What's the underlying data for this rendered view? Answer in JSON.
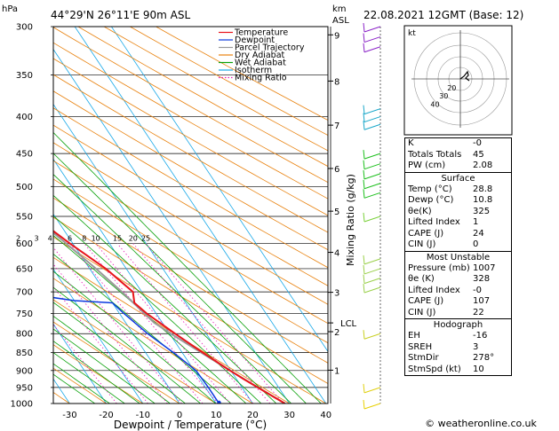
{
  "header": {
    "left_unit": "hPa",
    "location": "44°29'N  26°11'E  90m  ASL",
    "km_label": "km",
    "asl_label": "ASL",
    "datetime": "22.08.2021  12GMT  (Base: 12)"
  },
  "colors": {
    "temperature": "#e8141b",
    "dewpoint": "#0b3ae0",
    "parcel": "#999999",
    "dry_adiabat": "#e8820f",
    "wet_adiabat": "#0aa10a",
    "isotherm": "#18a8e8",
    "mixing_ratio": "#e819b8"
  },
  "legend": [
    {
      "label": "Temperature",
      "color": "#e8141b",
      "dash": false
    },
    {
      "label": "Dewpoint",
      "color": "#0b3ae0",
      "dash": false
    },
    {
      "label": "Parcel Trajectory",
      "color": "#999999",
      "dash": false
    },
    {
      "label": "Dry Adiabat",
      "color": "#e8820f",
      "dash": false
    },
    {
      "label": "Wet Adiabat",
      "color": "#0aa10a",
      "dash": false
    },
    {
      "label": "Isotherm",
      "color": "#18a8e8",
      "dash": false
    },
    {
      "label": "Mixing Ratio",
      "color": "#e819b8",
      "dash": true
    }
  ],
  "chart_data": {
    "type": "skew-t",
    "title": "44°29'N  26°11'E  90m  ASL",
    "xlabel": "Dewpoint / Temperature (°C)",
    "ylabel": "hPa",
    "right_ylabel": "Mixing Ratio (g/kg)",
    "xlim": [
      -35,
      40
    ],
    "pressure_levels": [
      300,
      350,
      400,
      450,
      500,
      550,
      600,
      650,
      700,
      750,
      800,
      850,
      900,
      950,
      1000
    ],
    "x_ticks": [
      -30,
      -20,
      -10,
      0,
      10,
      20,
      30,
      40
    ],
    "km_ticks": [
      {
        "label": "9",
        "p": 308
      },
      {
        "label": "8",
        "p": 357
      },
      {
        "label": "7",
        "p": 411
      },
      {
        "label": "6",
        "p": 472
      },
      {
        "label": "5",
        "p": 541
      },
      {
        "label": "4",
        "p": 617
      },
      {
        "label": "3",
        "p": 701
      },
      {
        "label": "LCL",
        "p": 773
      },
      {
        "label": "2",
        "p": 795
      },
      {
        "label": "1",
        "p": 899
      }
    ],
    "mixing_ratio_labels": [
      "1",
      "2",
      "3",
      "4",
      "6",
      "8",
      "10",
      "15",
      "20",
      "25"
    ],
    "mixing_ratio_values": [
      1,
      2,
      3,
      4,
      6,
      8,
      10,
      15,
      20,
      25
    ],
    "temperature": [
      {
        "p": 1000,
        "t": 28.8
      },
      {
        "p": 975,
        "t": 26.6
      },
      {
        "p": 950,
        "t": 24.3
      },
      {
        "p": 925,
        "t": 22.0
      },
      {
        "p": 900,
        "t": 19.8
      },
      {
        "p": 850,
        "t": 15.6
      },
      {
        "p": 800,
        "t": 11.5
      },
      {
        "p": 750,
        "t": 7.4
      },
      {
        "p": 725,
        "t": 6.0
      },
      {
        "p": 700,
        "t": 7.6
      },
      {
        "p": 650,
        "t": 4.4
      },
      {
        "p": 600,
        "t": -0.8
      },
      {
        "p": 550,
        "t": -5.7
      },
      {
        "p": 500,
        "t": -11.1
      },
      {
        "p": 450,
        "t": -16.6
      },
      {
        "p": 400,
        "t": -21.0
      },
      {
        "p": 350,
        "t": -28.5
      },
      {
        "p": 300,
        "t": -36.5
      }
    ],
    "dewpoint": [
      {
        "p": 1000,
        "t": 10.8
      },
      {
        "p": 950,
        "t": 10.8
      },
      {
        "p": 900,
        "t": 10.5
      },
      {
        "p": 850,
        "t": 7.6
      },
      {
        "p": 800,
        "t": 4.0
      },
      {
        "p": 750,
        "t": 1.2
      },
      {
        "p": 725,
        "t": 0.0
      },
      {
        "p": 720,
        "t": -10.0
      },
      {
        "p": 700,
        "t": -25.0
      },
      {
        "p": 650,
        "t": -38.5
      },
      {
        "p": 600,
        "t": -38.0
      },
      {
        "p": 550,
        "t": -36.2
      },
      {
        "p": 500,
        "t": -30.5
      },
      {
        "p": 450,
        "t": -51.5
      },
      {
        "p": 400,
        "t": -45.0
      },
      {
        "p": 380,
        "t": -50.0
      },
      {
        "p": 360,
        "t": -47.5
      },
      {
        "p": 350,
        "t": -48.0
      },
      {
        "p": 320,
        "t": -49.5
      },
      {
        "p": 300,
        "t": -53.0
      }
    ],
    "parcel": [
      {
        "p": 1000,
        "t": 28.8
      },
      {
        "p": 950,
        "t": 24.3
      },
      {
        "p": 900,
        "t": 19.8
      },
      {
        "p": 850,
        "t": 15.2
      },
      {
        "p": 800,
        "t": 10.3
      },
      {
        "p": 773,
        "t": 7.8
      },
      {
        "p": 700,
        "t": 4.6
      },
      {
        "p": 650,
        "t": 1.7
      },
      {
        "p": 600,
        "t": -1.8
      },
      {
        "p": 550,
        "t": -5.9
      },
      {
        "p": 500,
        "t": -11.0
      },
      {
        "p": 450,
        "t": -17.0
      },
      {
        "p": 400,
        "t": -24.5
      },
      {
        "p": 350,
        "t": -33.5
      },
      {
        "p": 300,
        "t": -44.0
      }
    ]
  },
  "hodograph": {
    "unit_label": "kt",
    "ring_labels": [
      "40",
      "30",
      "20"
    ]
  },
  "indices": {
    "top": [
      {
        "label": "K",
        "value": "-0"
      },
      {
        "label": "Totals Totals",
        "value": "45"
      },
      {
        "label": "PW (cm)",
        "value": "2.08"
      }
    ],
    "surface_title": "Surface",
    "surface": [
      {
        "label": "Temp (°C)",
        "value": "28.8"
      },
      {
        "label": "Dewp (°C)",
        "value": "10.8"
      },
      {
        "label": "θe(K)",
        "value": "325"
      },
      {
        "label": "Lifted Index",
        "value": "1"
      },
      {
        "label": "CAPE (J)",
        "value": "24"
      },
      {
        "label": "CIN (J)",
        "value": "0"
      }
    ],
    "unstable_title": "Most Unstable",
    "unstable": [
      {
        "label": "Pressure (mb)",
        "value": "1007"
      },
      {
        "label": "θe (K)",
        "value": "328"
      },
      {
        "label": "Lifted Index",
        "value": "-0"
      },
      {
        "label": "CAPE (J)",
        "value": "107"
      },
      {
        "label": "CIN (J)",
        "value": "22"
      }
    ],
    "hodograph_title": "Hodograph",
    "hodo": [
      {
        "label": "EH",
        "value": "-16"
      },
      {
        "label": "SREH",
        "value": "3"
      },
      {
        "label": "StmDir",
        "value": "278°"
      },
      {
        "label": "StmSpd (kt)",
        "value": "10"
      }
    ]
  },
  "footer": {
    "copyright": "© weatheronline.co.uk"
  }
}
